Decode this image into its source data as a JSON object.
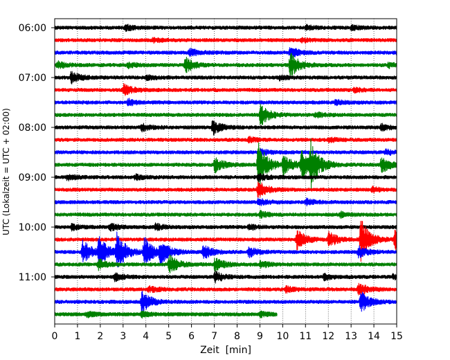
{
  "chart_data": {
    "type": "line",
    "title": "",
    "xlabel": "Zeit  [min]",
    "ylabel": "UTC (Lokalzeit = UTC + 02:00)",
    "xlim": [
      0,
      15
    ],
    "x_ticks": [
      0,
      1,
      2,
      3,
      4,
      5,
      6,
      7,
      8,
      9,
      10,
      11,
      12,
      13,
      14,
      15
    ],
    "x_tick_labels": [
      "0",
      "1",
      "2",
      "3",
      "4",
      "5",
      "6",
      "7",
      "8",
      "9",
      "10",
      "11",
      "12",
      "13",
      "14",
      "15"
    ],
    "y_tick_labels": [
      "06:00",
      "07:00",
      "08:00",
      "09:00",
      "10:00",
      "11:00"
    ],
    "grid": "vertical dotted at each minute",
    "trace_colors": [
      "#000000",
      "#ff0000",
      "#0000ff",
      "#008000"
    ],
    "traces_count": 24,
    "traces": [
      {
        "start": "06:00",
        "color": "#000000",
        "end_min": 15,
        "events": [
          {
            "t": 3.1,
            "amp": 0.45
          },
          {
            "t": 11.0,
            "amp": 0.35
          },
          {
            "t": 13.0,
            "amp": 0.4
          }
        ]
      },
      {
        "start": "06:15",
        "color": "#ff0000",
        "end_min": 15,
        "events": [
          {
            "t": 4.3,
            "amp": 0.3
          },
          {
            "t": 10.8,
            "amp": 0.3
          }
        ]
      },
      {
        "start": "06:30",
        "color": "#0000ff",
        "end_min": 15,
        "events": [
          {
            "t": 5.9,
            "amp": 0.6
          },
          {
            "t": 10.3,
            "amp": 0.9
          },
          {
            "t": 15.0,
            "amp": 0.4
          }
        ]
      },
      {
        "start": "06:45",
        "color": "#008000",
        "end_min": 15,
        "events": [
          {
            "t": 0.1,
            "amp": 0.55
          },
          {
            "t": 3.2,
            "amp": 0.4
          },
          {
            "t": 5.7,
            "amp": 1.3
          },
          {
            "t": 10.3,
            "amp": 2.1
          },
          {
            "t": 14.6,
            "amp": 0.4
          }
        ]
      },
      {
        "start": "07:00",
        "color": "#000000",
        "end_min": 15,
        "events": [
          {
            "t": 0.7,
            "amp": 1.0
          },
          {
            "t": 4.0,
            "amp": 0.35
          },
          {
            "t": 9.8,
            "amp": 0.35
          }
        ]
      },
      {
        "start": "07:15",
        "color": "#ff0000",
        "end_min": 15,
        "events": [
          {
            "t": 3.0,
            "amp": 0.9
          },
          {
            "t": 13.1,
            "amp": 0.35
          }
        ]
      },
      {
        "start": "07:30",
        "color": "#0000ff",
        "end_min": 15,
        "events": [
          {
            "t": 3.2,
            "amp": 0.5
          },
          {
            "t": 12.3,
            "amp": 0.4
          }
        ]
      },
      {
        "start": "07:45",
        "color": "#008000",
        "end_min": 15,
        "events": [
          {
            "t": 9.0,
            "amp": 1.8
          },
          {
            "t": 11.4,
            "amp": 0.4
          }
        ]
      },
      {
        "start": "08:00",
        "color": "#000000",
        "end_min": 15,
        "events": [
          {
            "t": 3.8,
            "amp": 0.6
          },
          {
            "t": 6.9,
            "amp": 1.2
          },
          {
            "t": 14.3,
            "amp": 0.5
          }
        ]
      },
      {
        "start": "08:15",
        "color": "#ff0000",
        "end_min": 15,
        "events": [
          {
            "t": 8.5,
            "amp": 0.4
          },
          {
            "t": 12.0,
            "amp": 0.35
          }
        ]
      },
      {
        "start": "08:30",
        "color": "#0000ff",
        "end_min": 15,
        "events": [
          {
            "t": 9.0,
            "amp": 0.5
          },
          {
            "t": 14.5,
            "amp": 0.4
          }
        ]
      },
      {
        "start": "08:45",
        "color": "#008000",
        "end_min": 15,
        "events": [
          {
            "t": 7.0,
            "amp": 1.3
          },
          {
            "t": 8.9,
            "amp": 4.0
          },
          {
            "t": 10.0,
            "amp": 1.6
          },
          {
            "t": 10.8,
            "amp": 2.4
          },
          {
            "t": 11.2,
            "amp": 3.5
          },
          {
            "t": 14.3,
            "amp": 1.4
          }
        ]
      },
      {
        "start": "09:00",
        "color": "#000000",
        "end_min": 15,
        "events": [
          {
            "t": 0.5,
            "amp": 0.5
          },
          {
            "t": 3.5,
            "amp": 0.4
          },
          {
            "t": 8.9,
            "amp": 0.6
          }
        ]
      },
      {
        "start": "09:15",
        "color": "#ff0000",
        "end_min": 15,
        "events": [
          {
            "t": 8.9,
            "amp": 1.4
          },
          {
            "t": 13.9,
            "amp": 0.4
          }
        ]
      },
      {
        "start": "09:30",
        "color": "#0000ff",
        "end_min": 15,
        "events": [
          {
            "t": 8.9,
            "amp": 0.6
          },
          {
            "t": 11.0,
            "amp": 0.5
          }
        ]
      },
      {
        "start": "09:45",
        "color": "#008000",
        "end_min": 15,
        "events": [
          {
            "t": 9.0,
            "amp": 0.5
          },
          {
            "t": 12.5,
            "amp": 0.4
          }
        ]
      },
      {
        "start": "10:00",
        "color": "#000000",
        "end_min": 15,
        "events": [
          {
            "t": 0.7,
            "amp": 0.5
          },
          {
            "t": 2.4,
            "amp": 0.6
          },
          {
            "t": 4.4,
            "amp": 0.5
          },
          {
            "t": 8.5,
            "amp": 0.4
          }
        ]
      },
      {
        "start": "10:15",
        "color": "#ff0000",
        "end_min": 15,
        "events": [
          {
            "t": 10.6,
            "amp": 1.7
          },
          {
            "t": 12.0,
            "amp": 1.3
          },
          {
            "t": 13.4,
            "amp": 3.6
          },
          {
            "t": 14.9,
            "amp": 1.6
          }
        ]
      },
      {
        "start": "10:30",
        "color": "#0000ff",
        "end_min": 15,
        "events": [
          {
            "t": 1.2,
            "amp": 2.0
          },
          {
            "t": 1.9,
            "amp": 2.5
          },
          {
            "t": 2.7,
            "amp": 3.2
          },
          {
            "t": 3.9,
            "amp": 2.6
          },
          {
            "t": 4.6,
            "amp": 2.0
          },
          {
            "t": 6.5,
            "amp": 1.2
          },
          {
            "t": 8.5,
            "amp": 0.9
          },
          {
            "t": 13.3,
            "amp": 0.9
          }
        ]
      },
      {
        "start": "10:45",
        "color": "#008000",
        "end_min": 15,
        "events": [
          {
            "t": 1.9,
            "amp": 0.9
          },
          {
            "t": 5.0,
            "amp": 1.6
          },
          {
            "t": 7.0,
            "amp": 1.2
          },
          {
            "t": 9.0,
            "amp": 0.6
          }
        ]
      },
      {
        "start": "11:00",
        "color": "#000000",
        "end_min": 15,
        "events": [
          {
            "t": 2.6,
            "amp": 0.6
          },
          {
            "t": 7.0,
            "amp": 0.9
          },
          {
            "t": 11.8,
            "amp": 0.5
          },
          {
            "t": 14.8,
            "amp": 0.4
          }
        ]
      },
      {
        "start": "11:15",
        "color": "#ff0000",
        "end_min": 15,
        "events": [
          {
            "t": 4.1,
            "amp": 0.5
          },
          {
            "t": 10.1,
            "amp": 0.5
          },
          {
            "t": 13.3,
            "amp": 1.1
          }
        ]
      },
      {
        "start": "11:30",
        "color": "#0000ff",
        "end_min": 15,
        "events": [
          {
            "t": 3.8,
            "amp": 1.9
          },
          {
            "t": 13.4,
            "amp": 1.8
          }
        ]
      },
      {
        "start": "11:45",
        "color": "#008000",
        "end_min": 9.75,
        "events": [
          {
            "t": 1.4,
            "amp": 0.4
          },
          {
            "t": 3.8,
            "amp": 0.4
          },
          {
            "t": 9.0,
            "amp": 0.35
          }
        ]
      }
    ]
  }
}
